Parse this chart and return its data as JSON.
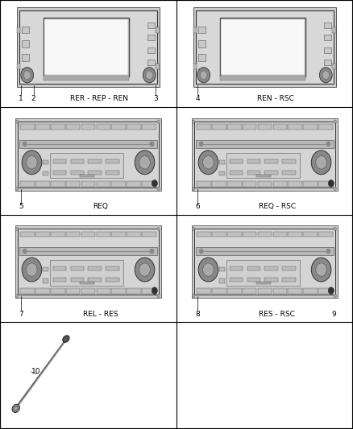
{
  "background_color": "#ffffff",
  "grid_rows": 4,
  "grid_cols": 2,
  "cells": [
    {
      "row": 0,
      "col": 0,
      "type": "nav_radio",
      "labels": [
        "1",
        "2",
        "RER - REP - REN",
        "3"
      ]
    },
    {
      "row": 0,
      "col": 1,
      "type": "nav_radio",
      "labels": [
        "4",
        "",
        "REN - RSC",
        ""
      ]
    },
    {
      "row": 1,
      "col": 0,
      "type": "std_radio",
      "labels": [
        "5",
        "REQ",
        ""
      ]
    },
    {
      "row": 1,
      "col": 1,
      "type": "std_radio",
      "labels": [
        "6",
        "REQ - RSC",
        ""
      ]
    },
    {
      "row": 2,
      "col": 0,
      "type": "std_radio",
      "labels": [
        "7",
        "REL - RES",
        ""
      ]
    },
    {
      "row": 2,
      "col": 1,
      "type": "std_radio",
      "labels": [
        "8",
        "RES - RSC",
        "9"
      ]
    },
    {
      "row": 3,
      "col": 0,
      "type": "antenna",
      "labels": [
        "10"
      ]
    },
    {
      "row": 3,
      "col": 1,
      "type": "empty",
      "labels": []
    }
  ],
  "line_color": "#444444",
  "body_color": "#e8e8e8",
  "screen_color": "#ffffff",
  "text_color": "#000000",
  "label_font_size": 6.5
}
